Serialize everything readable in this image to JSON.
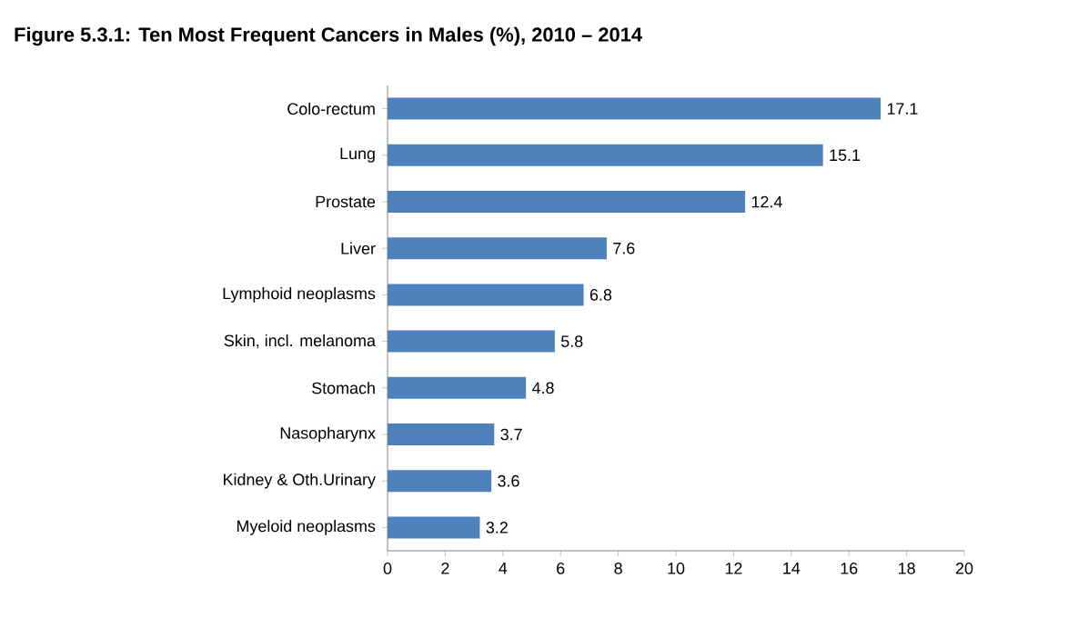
{
  "chart_data": {
    "type": "bar",
    "orientation": "horizontal",
    "title": "Figure 5.3.1: Ten Most Frequent Cancers in Males (%), 2010 – 2014",
    "categories": [
      "Colo-rectum",
      "Lung",
      "Prostate",
      "Liver",
      "Lymphoid neoplasms",
      "Skin, incl. melanoma",
      "Stomach",
      "Nasopharynx",
      "Kidney & Oth.Urinary",
      "Myeloid neoplasms"
    ],
    "values": [
      17.1,
      15.1,
      12.4,
      7.6,
      6.8,
      5.8,
      4.8,
      3.7,
      3.6,
      3.2
    ],
    "color": "#4f81bd",
    "xlim": [
      0,
      20
    ],
    "xticks": [
      0,
      2,
      4,
      6,
      8,
      10,
      12,
      14,
      16,
      18,
      20
    ],
    "data_labels": true
  }
}
